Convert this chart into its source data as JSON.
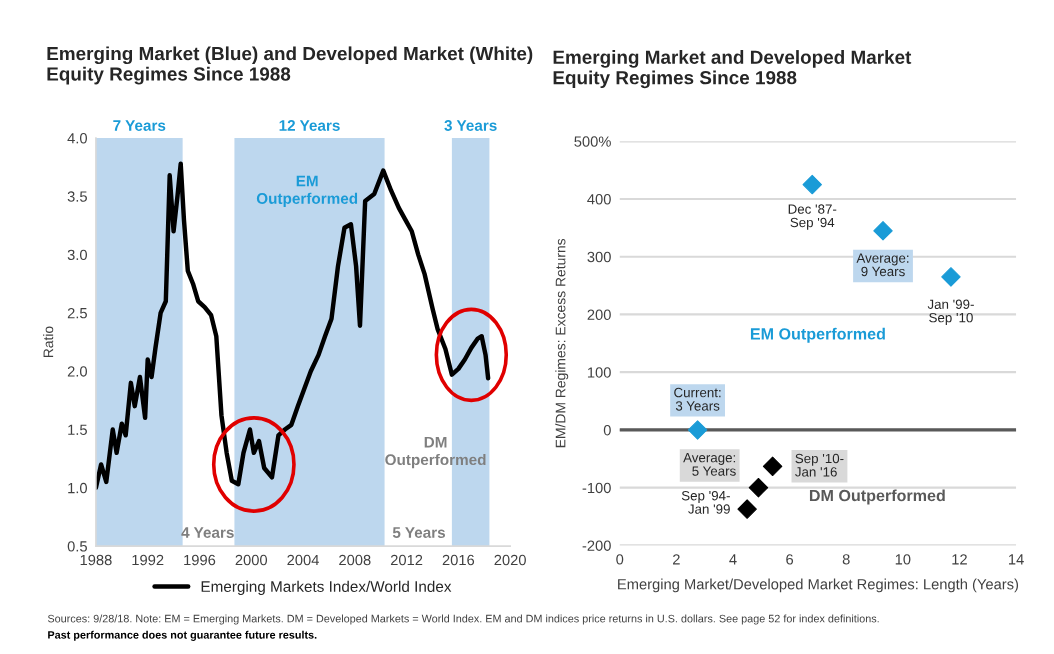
{
  "chart_data": [
    {
      "type": "line",
      "title": "Emerging Market (Blue) and Developed Market (White)\nEquity Regimes Since 1988",
      "ylabel": "Ratio",
      "series": [
        {
          "name": "Emerging Markets Index/World Index",
          "color": "#000000",
          "x": [
            1988.0,
            1988.4,
            1988.8,
            1989.3,
            1989.6,
            1990.0,
            1990.3,
            1990.7,
            1991.0,
            1991.4,
            1991.8,
            1992.0,
            1992.3,
            1992.6,
            1993.0,
            1993.4,
            1993.7,
            1994.0,
            1994.3,
            1994.55,
            1994.8,
            1995.1,
            1995.5,
            1995.9,
            1996.4,
            1996.9,
            1997.3,
            1997.7,
            1998.1,
            1998.5,
            1999.0,
            1999.4,
            1999.9,
            2000.2,
            2000.6,
            2001.0,
            2001.6,
            2002.1,
            2002.6,
            2003.1,
            2003.6,
            2004.1,
            2004.6,
            2005.2,
            2005.7,
            2006.2,
            2006.7,
            2007.2,
            2007.7,
            2008.1,
            2008.4,
            2008.8,
            2009.5,
            2010.2,
            2010.8,
            2011.4,
            2011.9,
            2012.4,
            2012.9,
            2013.4,
            2014.0,
            2014.4,
            2015.0,
            2015.5,
            2016.0,
            2016.5,
            2017.0,
            2017.5,
            2017.8,
            2018.1,
            2018.3
          ],
          "values": [
            1.0,
            1.2,
            1.05,
            1.5,
            1.3,
            1.55,
            1.45,
            1.9,
            1.7,
            1.95,
            1.6,
            2.1,
            1.95,
            2.2,
            2.5,
            2.6,
            3.68,
            3.2,
            3.5,
            3.78,
            3.3,
            2.86,
            2.75,
            2.6,
            2.55,
            2.48,
            2.3,
            1.62,
            1.3,
            1.06,
            1.03,
            1.3,
            1.5,
            1.3,
            1.4,
            1.17,
            1.09,
            1.45,
            1.5,
            1.54,
            1.7,
            1.85,
            2.0,
            2.14,
            2.3,
            2.45,
            2.9,
            3.23,
            3.26,
            2.9,
            2.39,
            3.46,
            3.52,
            3.72,
            3.55,
            3.4,
            3.3,
            3.2,
            3.0,
            2.83,
            2.54,
            2.36,
            2.19,
            1.97,
            2.02,
            2.1,
            2.2,
            2.28,
            2.3,
            2.14,
            1.94
          ]
        }
      ],
      "xlim": [
        1988,
        2020
      ],
      "xticks": [
        1988,
        1992,
        1996,
        2000,
        2004,
        2008,
        2012,
        2016,
        2020
      ],
      "ylim": [
        0.5,
        4.0
      ],
      "yticks": [
        {
          "value": 0.5,
          "label": "0.5"
        },
        {
          "value": 1.0,
          "label": "1.0"
        },
        {
          "value": 1.5,
          "label": "1.5"
        },
        {
          "value": 2.0,
          "label": "2.0"
        },
        {
          "value": 2.5,
          "label": "2.5"
        },
        {
          "value": 3.0,
          "label": "3.0"
        },
        {
          "value": 3.5,
          "label": "3.5"
        },
        {
          "value": 4.0,
          "label": "4.0"
        }
      ],
      "bands": [
        {
          "axis": "x",
          "from": 1988,
          "to": 1994.7,
          "label": "7 Years",
          "color": "#bdd7ee"
        },
        {
          "axis": "x",
          "from": 1998.7,
          "to": 2010.3,
          "label": "12 Years",
          "color": "#bdd7ee"
        },
        {
          "axis": "x",
          "from": 2015.5,
          "to": 2018.4,
          "label": "3 Years",
          "color": "#bdd7ee"
        }
      ],
      "annotations": [
        "EM\nOutperformed",
        "DM\nOutperformed",
        "4 Years",
        "5 Years",
        "Sources: 9/28/18. Note: EM = Emerging Markets. DM = Developed Markets = World Index. EM and DM indices price returns in U.S. dollars. See page 52 for index definitions.",
        "Past performance does not guarantee future results."
      ],
      "grid": false,
      "legend": "bottom",
      "line_style": "solid",
      "marker": "none"
    },
    {
      "type": "scatter",
      "title": "Emerging Market and Developed Market\nEquity Regimes Since 1988",
      "xlabel": "Emerging Market/Developed Market Regimes: Length (Years)",
      "ylabel": "EM/DM Regimes: Excess Returns",
      "series": [
        {
          "color": "#1a9bd7",
          "x": [
            2.75,
            6.8,
            9.3,
            11.7
          ],
          "values": [
            0,
            425,
            345,
            265
          ]
        },
        {
          "color": "#000000",
          "x": [
            4.5,
            4.9,
            5.4
          ],
          "values": [
            -137,
            -100,
            -63
          ]
        }
      ],
      "xlim": [
        0,
        14
      ],
      "xticks": [
        0,
        2,
        4,
        6,
        8,
        10,
        12,
        14
      ],
      "ylim": [
        -200,
        500
      ],
      "yticks": [
        -200,
        -100,
        0,
        100,
        200,
        300,
        {
          "value": 500,
          "label": "500%"
        },
        400
      ],
      "ref_lines": [
        {
          "axis": "y",
          "value": 0,
          "color": "#595959"
        }
      ],
      "annotations": [
        {
          "text": "Dec '87-\nSep '94",
          "x": 6.8,
          "y": 425
        },
        {
          "text": "Average:\n9 Years",
          "x": 9.3,
          "y": 345
        },
        {
          "text": "Jan '99-\nSep '10",
          "x": 11.7,
          "y": 265
        },
        {
          "text": "Current:\n3 Years",
          "x": 2.75,
          "y": 0
        },
        {
          "text": "Sep '10-\nJan '16",
          "x": 5.4,
          "y": -63
        },
        {
          "text": "Average:\n5 Years",
          "x": 4.9,
          "y": -100
        },
        {
          "text": "Sep '94-\nJan '99",
          "x": 4.5,
          "y": -137
        },
        "EM Outperformed",
        "DM Outperformed"
      ],
      "grid": "y",
      "marker": "diamond"
    }
  ]
}
